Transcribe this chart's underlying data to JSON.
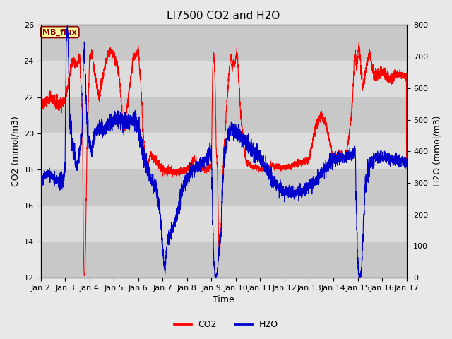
{
  "title": "LI7500 CO2 and H2O",
  "xlabel": "Time",
  "ylabel_left": "CO2 (mmol/m3)",
  "ylabel_right": "H2O (mmol/m3)",
  "ylim_left": [
    12,
    26
  ],
  "ylim_right": [
    0,
    800
  ],
  "yticks_left": [
    12,
    14,
    16,
    18,
    20,
    22,
    24,
    26
  ],
  "yticks_right": [
    0,
    100,
    200,
    300,
    400,
    500,
    600,
    700,
    800
  ],
  "xtick_labels": [
    "Jan 2",
    "Jan 3",
    "Jan 4",
    "Jan 5",
    "Jan 6",
    "Jan 7",
    "Jan 8",
    "Jan 9",
    "Jan 10",
    "Jan 11",
    "Jan 12",
    "Jan 13",
    "Jan 14",
    "Jan 15",
    "Jan 16",
    "Jan 17"
  ],
  "xtick_positions": [
    2,
    3,
    4,
    5,
    6,
    7,
    8,
    9,
    10,
    11,
    12,
    13,
    14,
    15,
    16,
    17
  ],
  "co2_color": "#FF0000",
  "h2o_color": "#0000CC",
  "background_color": "#E8E8E8",
  "band_light": "#DCDCDC",
  "band_dark": "#C8C8C8",
  "label_box_color": "#FFFF99",
  "label_box_edge": "#8B0000",
  "label_text": "MB_flux",
  "legend_co2": "CO2",
  "legend_h2o": "H2O",
  "linewidth": 0.8,
  "title_fontsize": 11,
  "axis_label_fontsize": 9,
  "tick_fontsize": 8
}
